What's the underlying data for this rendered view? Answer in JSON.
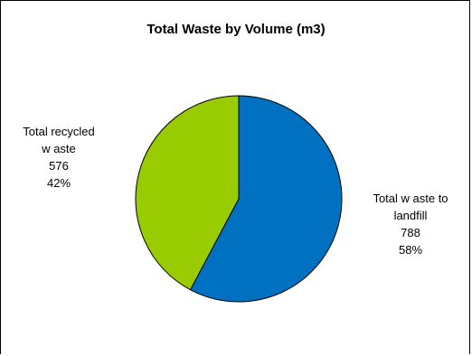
{
  "chart_data": {
    "type": "pie",
    "title": "Total Waste by Volume (m3)",
    "slices": [
      {
        "name_lines": [
          "Total w aste to",
          "landfill"
        ],
        "value": 788,
        "percent": "58%",
        "color": "#0070C0"
      },
      {
        "name_lines": [
          "Total recycled",
          "w aste"
        ],
        "value": 576,
        "percent": "42%",
        "color": "#99CC00"
      }
    ]
  }
}
